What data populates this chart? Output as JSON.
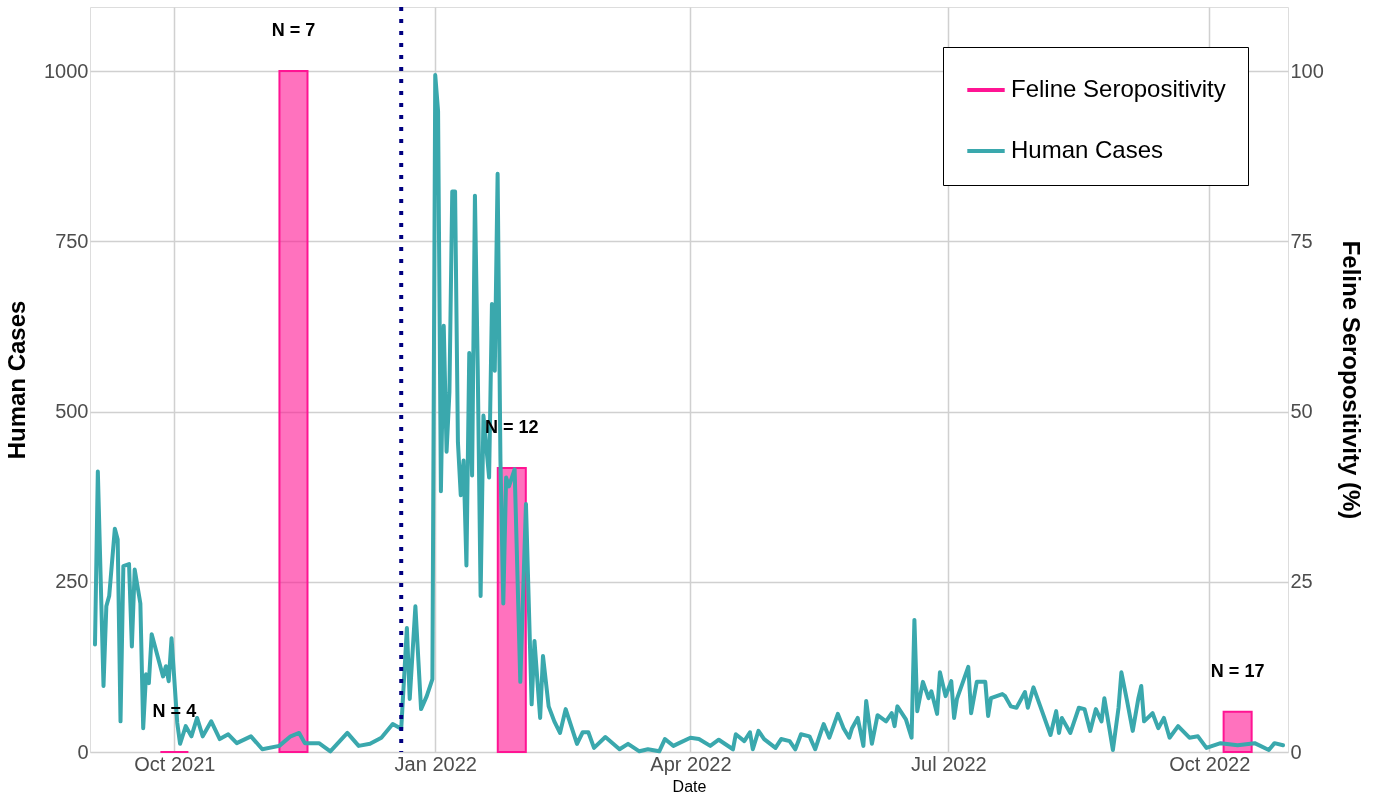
{
  "chart_data": {
    "type": "line",
    "xlabel": "Date",
    "ylabel": "Human Cases",
    "y2label": "Feline Seropositivity (%)",
    "xlim": [
      "2021-09-03",
      "2022-10-27"
    ],
    "xticks": [
      {
        "value": "2021-10-01",
        "label": "Oct 2021"
      },
      {
        "value": "2022-01-01",
        "label": "Jan 2022"
      },
      {
        "value": "2022-04-01",
        "label": "Apr 2022"
      },
      {
        "value": "2022-07-01",
        "label": "Jul 2022"
      },
      {
        "value": "2022-10-01",
        "label": "Oct 2022"
      }
    ],
    "ylim": [
      0,
      1094
    ],
    "yticks": [
      0,
      250,
      500,
      750,
      1000
    ],
    "y2lim": [
      0,
      109.4
    ],
    "y2ticks": [
      0,
      25,
      50,
      75,
      100
    ],
    "grid": true,
    "legend": "top right",
    "series": [
      {
        "name": "Feline Seropositivity",
        "type": "bar",
        "axis": "y2",
        "color": "#ff1493",
        "x": [
          "2021-10-01",
          "2021-11-12",
          "2022-01-28",
          "2022-10-11"
        ],
        "values": [
          0,
          100,
          41.7,
          5.9
        ]
      },
      {
        "name": "Human Cases",
        "type": "line",
        "color": "#3aa8ad",
        "x": [
          "2021-09-03",
          "2021-09-04",
          "2021-09-06",
          "2021-09-07",
          "2021-09-08",
          "2021-09-10",
          "2021-09-11",
          "2021-09-12",
          "2021-09-13",
          "2021-09-15",
          "2021-09-16",
          "2021-09-17",
          "2021-09-19",
          "2021-09-20",
          "2021-09-21",
          "2021-09-22",
          "2021-09-23",
          "2021-09-27",
          "2021-09-28",
          "2021-09-29",
          "2021-09-30",
          "2021-10-02",
          "2021-10-03",
          "2021-10-05",
          "2021-10-07",
          "2021-10-09",
          "2021-10-11",
          "2021-10-14",
          "2021-10-17",
          "2021-10-20",
          "2021-10-23",
          "2021-10-28",
          "2021-11-01",
          "2021-11-07",
          "2021-11-11",
          "2021-11-14",
          "2021-11-16",
          "2021-11-21",
          "2021-11-25",
          "2021-12-01",
          "2021-12-05",
          "2021-12-09",
          "2021-12-13",
          "2021-12-17",
          "2021-12-20",
          "2021-12-22",
          "2021-12-23",
          "2021-12-25",
          "2021-12-27",
          "2021-12-29",
          "2021-12-31",
          "2022-01-01",
          "2022-01-02",
          "2022-01-03",
          "2022-01-04",
          "2022-01-05",
          "2022-01-06",
          "2022-01-07",
          "2022-01-08",
          "2022-01-09",
          "2022-01-10",
          "2022-01-11",
          "2022-01-12",
          "2022-01-13",
          "2022-01-14",
          "2022-01-15",
          "2022-01-16",
          "2022-01-17",
          "2022-01-18",
          "2022-01-20",
          "2022-01-21",
          "2022-01-22",
          "2022-01-23",
          "2022-01-24",
          "2022-01-25",
          "2022-01-26",
          "2022-01-27",
          "2022-01-29",
          "2022-01-31",
          "2022-02-02",
          "2022-02-04",
          "2022-02-05",
          "2022-02-07",
          "2022-02-08",
          "2022-02-10",
          "2022-02-12",
          "2022-02-14",
          "2022-02-16",
          "2022-02-20",
          "2022-02-22",
          "2022-02-24",
          "2022-02-26",
          "2022-03-02",
          "2022-03-07",
          "2022-03-10",
          "2022-03-14",
          "2022-03-17",
          "2022-03-21",
          "2022-03-23",
          "2022-03-26",
          "2022-03-28",
          "2022-04-01",
          "2022-04-04",
          "2022-04-08",
          "2022-04-11",
          "2022-04-16",
          "2022-04-17",
          "2022-04-20",
          "2022-04-22",
          "2022-04-23",
          "2022-04-25",
          "2022-04-27",
          "2022-05-01",
          "2022-05-03",
          "2022-05-06",
          "2022-05-08",
          "2022-05-10",
          "2022-05-13",
          "2022-05-15",
          "2022-05-17",
          "2022-05-18",
          "2022-05-20",
          "2022-05-23",
          "2022-05-25",
          "2022-05-27",
          "2022-05-28",
          "2022-05-30",
          "2022-06-01",
          "2022-06-02",
          "2022-06-04",
          "2022-06-06",
          "2022-06-09",
          "2022-06-11",
          "2022-06-12",
          "2022-06-13",
          "2022-06-16",
          "2022-06-18",
          "2022-06-19",
          "2022-06-20",
          "2022-06-22",
          "2022-06-24",
          "2022-06-25",
          "2022-06-27",
          "2022-06-28",
          "2022-06-30",
          "2022-07-02",
          "2022-07-03",
          "2022-07-04",
          "2022-07-08",
          "2022-07-09",
          "2022-07-11",
          "2022-07-14",
          "2022-07-15",
          "2022-07-16",
          "2022-07-20",
          "2022-07-21",
          "2022-07-23",
          "2022-07-25",
          "2022-07-28",
          "2022-07-29",
          "2022-07-31",
          "2022-08-03",
          "2022-08-06",
          "2022-08-08",
          "2022-08-09",
          "2022-08-10",
          "2022-08-13",
          "2022-08-16",
          "2022-08-18",
          "2022-08-20",
          "2022-08-22",
          "2022-08-24",
          "2022-08-25",
          "2022-08-28",
          "2022-08-30",
          "2022-08-31",
          "2022-09-02",
          "2022-09-04",
          "2022-09-06",
          "2022-09-07",
          "2022-09-08",
          "2022-09-11",
          "2022-09-13",
          "2022-09-15",
          "2022-09-17",
          "2022-09-20",
          "2022-09-24",
          "2022-09-27",
          "2022-09-30",
          "2022-10-05",
          "2022-10-11",
          "2022-10-17",
          "2022-10-22",
          "2022-10-24",
          "2022-10-27"
        ],
        "values": [
          158,
          412,
          97,
          214,
          229,
          328,
          312,
          45,
          273,
          276,
          155,
          268,
          218,
          35,
          114,
          101,
          173,
          111,
          126,
          104,
          167,
          43,
          12,
          38,
          23,
          50,
          23,
          45,
          19,
          26,
          13,
          23,
          4,
          9,
          23,
          28,
          13,
          13,
          1,
          28,
          9,
          12,
          21,
          41,
          34,
          182,
          78,
          214,
          63,
          82,
          107,
          994,
          941,
          383,
          626,
          441,
          528,
          823,
          823,
          455,
          377,
          428,
          274,
          586,
          406,
          817,
          560,
          229,
          494,
          403,
          658,
          560,
          849,
          428,
          218,
          403,
          390,
          415,
          103,
          364,
          70,
          163,
          50,
          141,
          67,
          45,
          28,
          63,
          12,
          29,
          29,
          6,
          22,
          4,
          12,
          1,
          4,
          1,
          19,
          9,
          13,
          21,
          19,
          9,
          18,
          4,
          26,
          16,
          29,
          4,
          31,
          19,
          6,
          19,
          16,
          4,
          26,
          23,
          4,
          29,
          41,
          21,
          56,
          35,
          21,
          35,
          50,
          9,
          75,
          12,
          54,
          45,
          57,
          38,
          67,
          48,
          21,
          194,
          60,
          103,
          79,
          89,
          56,
          117,
          82,
          104,
          50,
          78,
          125,
          57,
          103,
          103,
          53,
          79,
          85,
          82,
          67,
          65,
          88,
          65,
          95,
          60,
          25,
          60,
          28,
          50,
          28,
          65,
          63,
          31,
          63,
          45,
          79,
          3,
          65,
          117,
          75,
          31,
          79,
          97,
          45,
          57,
          35,
          50,
          21,
          38,
          21,
          23,
          6,
          13,
          10,
          13,
          3,
          13,
          10
        ]
      }
    ],
    "ref_lines": [
      {
        "axis": "x",
        "value": "2021-12-20",
        "color": "#000080",
        "line_style": "dotted"
      }
    ],
    "annotations": [
      "N = 4",
      "N = 7",
      "N = 12",
      "N = 17"
    ]
  }
}
